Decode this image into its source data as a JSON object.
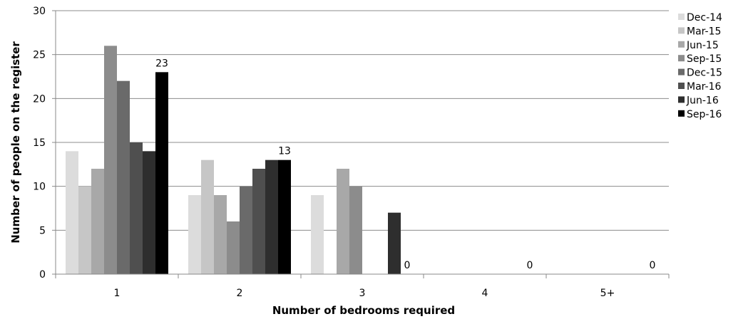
{
  "chart_data": {
    "type": "bar",
    "title": "",
    "xlabel": "Number of bedrooms required",
    "ylabel": "Number of people on the register",
    "categories": [
      "1",
      "2",
      "3",
      "4",
      "5+"
    ],
    "ylim": [
      0,
      30
    ],
    "yticks": [
      "0",
      "5",
      "10",
      "15",
      "20",
      "25",
      "30"
    ],
    "grid": true,
    "legend_position": "right",
    "series": [
      {
        "name": "Dec-14",
        "color": "#dcdcdc",
        "values": [
          14,
          9,
          9,
          0,
          0
        ]
      },
      {
        "name": "Mar-15",
        "color": "#c6c6c6",
        "values": [
          10,
          13,
          0,
          0,
          0
        ]
      },
      {
        "name": "Jun-15",
        "color": "#a8a8a8",
        "values": [
          12,
          9,
          12,
          0,
          0
        ]
      },
      {
        "name": "Sep-15",
        "color": "#8c8c8c",
        "values": [
          26,
          6,
          10,
          0,
          0
        ]
      },
      {
        "name": "Dec-15",
        "color": "#6a6a6a",
        "values": [
          22,
          10,
          0,
          0,
          0
        ]
      },
      {
        "name": "Mar-16",
        "color": "#4f4f4f",
        "values": [
          15,
          12,
          0,
          0,
          0
        ]
      },
      {
        "name": "Jun-16",
        "color": "#2e2e2e",
        "values": [
          14,
          13,
          7,
          0,
          0
        ]
      },
      {
        "name": "Sep-16",
        "color": "#000000",
        "values": [
          23,
          13,
          0,
          0,
          0
        ]
      }
    ],
    "data_labels": {
      "series": "Sep-16",
      "values": [
        "23",
        "13",
        "0",
        "0",
        "0"
      ]
    }
  }
}
